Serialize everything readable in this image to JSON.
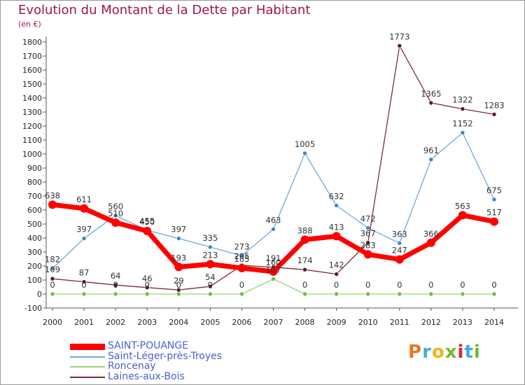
{
  "title": "Evolution du Montant de la Dette par Habitant",
  "subtitle": "(en €)",
  "logo": {
    "text": "Proxiti",
    "colors": [
      "#e87722",
      "#3ab0e0",
      "#f2b31b",
      "#77b82a",
      "#d9262b",
      "#3ab0e0",
      "#77b82a"
    ]
  },
  "chart_data": {
    "type": "line",
    "x": [
      2000,
      2001,
      2002,
      2003,
      2004,
      2005,
      2006,
      2007,
      2008,
      2009,
      2010,
      2011,
      2012,
      2013,
      2014
    ],
    "ylim": [
      -100,
      1800
    ],
    "yticks": [
      -100,
      0,
      100,
      200,
      300,
      400,
      500,
      600,
      700,
      800,
      900,
      1000,
      1100,
      1200,
      1300,
      1400,
      1500,
      1600,
      1700,
      1800
    ],
    "grid": false,
    "legend_position": "bottom-left",
    "series": [
      {
        "name": "SAINT-POUANGE",
        "color": "#ff0000",
        "marker": "#ff0000",
        "width": 7,
        "values": [
          638,
          611,
          510,
          450,
          193,
          213,
          185,
          160,
          388,
          413,
          283,
          247,
          366,
          563,
          517
        ]
      },
      {
        "name": "Saint-Léger-près-Troyes",
        "color": "#6fa8dc",
        "marker": "#3d85c6",
        "width": 1.3,
        "values": [
          182,
          397,
          560,
          455,
          397,
          335,
          273,
          463,
          1005,
          632,
          472,
          363,
          961,
          1152,
          675
        ]
      },
      {
        "name": "Roncenay",
        "color": "#93d86b",
        "marker": "#6ac13f",
        "width": 1.3,
        "values": [
          0,
          0,
          0,
          0,
          0,
          0,
          0,
          107,
          0,
          0,
          0,
          0,
          0,
          0,
          0
        ]
      },
      {
        "name": "Laines-aux-Bois",
        "color": "#7b2e34",
        "marker": "#5a1a20",
        "width": 1.3,
        "values": [
          109,
          87,
          64,
          46,
          29,
          54,
          205,
          191,
          174,
          142,
          367,
          1773,
          1365,
          1322,
          1283
        ]
      }
    ]
  }
}
